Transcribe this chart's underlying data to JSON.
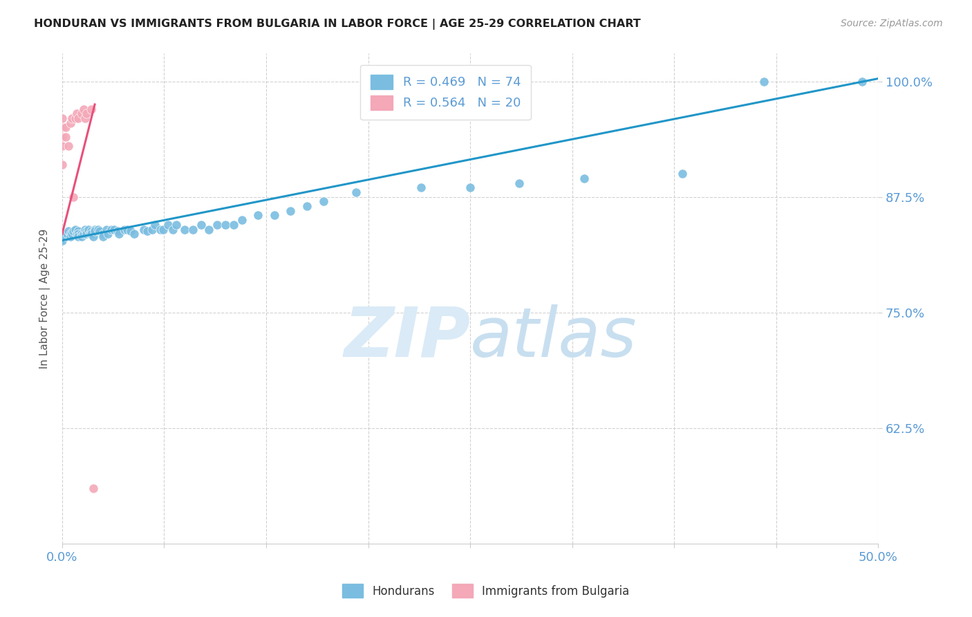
{
  "title": "HONDURAN VS IMMIGRANTS FROM BULGARIA IN LABOR FORCE | AGE 25-29 CORRELATION CHART",
  "source": "Source: ZipAtlas.com",
  "ylabel": "In Labor Force | Age 25-29",
  "xlim": [
    0.0,
    0.5
  ],
  "ylim": [
    0.5,
    1.03
  ],
  "yticks": [
    0.625,
    0.75,
    0.875,
    1.0
  ],
  "ytick_labels": [
    "62.5%",
    "75.0%",
    "87.5%",
    "100.0%"
  ],
  "xticks": [
    0.0,
    0.0625,
    0.125,
    0.1875,
    0.25,
    0.3125,
    0.375,
    0.4375,
    0.5
  ],
  "xtick_labels": [
    "0.0%",
    "",
    "",
    "",
    "",
    "",
    "",
    "",
    "50.0%"
  ],
  "blue_color": "#7abde0",
  "pink_color": "#f4a8b8",
  "blue_line_color": "#2196c8",
  "pink_line_color": "#e8507a",
  "axis_color": "#5b9bd5",
  "grid_color": "#cccccc",
  "watermark_color": "#daeaf7",
  "blue_scatter_x": [
    0.0,
    0.0,
    0.0,
    0.0,
    0.002,
    0.002,
    0.003,
    0.004,
    0.005,
    0.005,
    0.006,
    0.007,
    0.008,
    0.009,
    0.01,
    0.01,
    0.01,
    0.012,
    0.012,
    0.013,
    0.014,
    0.015,
    0.015,
    0.016,
    0.017,
    0.018,
    0.018,
    0.019,
    0.02,
    0.02,
    0.022,
    0.023,
    0.025,
    0.025,
    0.027,
    0.028,
    0.03,
    0.032,
    0.034,
    0.035,
    0.038,
    0.04,
    0.042,
    0.044,
    0.05,
    0.052,
    0.055,
    0.057,
    0.06,
    0.062,
    0.065,
    0.068,
    0.07,
    0.075,
    0.08,
    0.085,
    0.09,
    0.095,
    0.1,
    0.105,
    0.11,
    0.12,
    0.13,
    0.14,
    0.15,
    0.16,
    0.18,
    0.22,
    0.25,
    0.28,
    0.32,
    0.38,
    0.43,
    0.49
  ],
  "blue_scatter_y": [
    0.835,
    0.832,
    0.83,
    0.828,
    0.835,
    0.832,
    0.835,
    0.838,
    0.835,
    0.832,
    0.835,
    0.838,
    0.84,
    0.835,
    0.838,
    0.835,
    0.832,
    0.835,
    0.832,
    0.835,
    0.84,
    0.838,
    0.835,
    0.84,
    0.835,
    0.838,
    0.835,
    0.832,
    0.84,
    0.838,
    0.84,
    0.838,
    0.835,
    0.832,
    0.84,
    0.835,
    0.84,
    0.84,
    0.838,
    0.835,
    0.84,
    0.84,
    0.838,
    0.835,
    0.84,
    0.838,
    0.84,
    0.845,
    0.84,
    0.84,
    0.845,
    0.84,
    0.845,
    0.84,
    0.84,
    0.845,
    0.84,
    0.845,
    0.845,
    0.845,
    0.85,
    0.855,
    0.855,
    0.86,
    0.865,
    0.87,
    0.88,
    0.885,
    0.885,
    0.89,
    0.895,
    0.9,
    1.0,
    1.0
  ],
  "pink_scatter_x": [
    0.0,
    0.0,
    0.0,
    0.0,
    0.0,
    0.002,
    0.002,
    0.004,
    0.005,
    0.006,
    0.007,
    0.008,
    0.009,
    0.01,
    0.012,
    0.013,
    0.014,
    0.015,
    0.018,
    0.019
  ],
  "pink_scatter_y": [
    0.91,
    0.93,
    0.94,
    0.95,
    0.96,
    0.94,
    0.95,
    0.93,
    0.955,
    0.96,
    0.875,
    0.96,
    0.965,
    0.96,
    0.965,
    0.97,
    0.96,
    0.965,
    0.97,
    0.56
  ],
  "blue_trendline_x": [
    0.0,
    0.5
  ],
  "blue_trendline_y": [
    0.828,
    1.003
  ],
  "pink_trendline_x": [
    0.0,
    0.02
  ],
  "pink_trendline_y": [
    0.835,
    0.975
  ],
  "legend_hondurans": "Hondurans",
  "legend_bulgaria": "Immigrants from Bulgaria"
}
